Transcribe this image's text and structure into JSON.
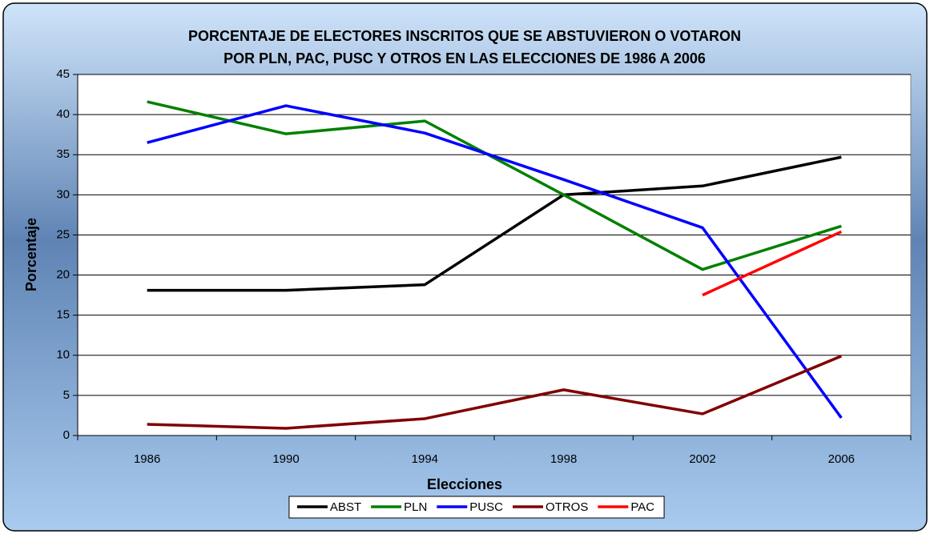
{
  "chart_data": {
    "type": "line",
    "title": [
      "PORCENTAJE DE ELECTORES INSCRITOS QUE SE ABSTUVIERON O VOTARON",
      "POR PLN, PAC, PUSC Y OTROS EN LAS ELECCIONES DE 1986 A 2006"
    ],
    "x_label": "Elecciones",
    "y_label": "Porcentaje",
    "categories": [
      "1986",
      "1990",
      "1994",
      "1998",
      "2002",
      "2006"
    ],
    "series": [
      {
        "name": "ABST",
        "color": "#000000",
        "values": [
          18.1,
          18.1,
          18.8,
          30.0,
          31.1,
          34.7
        ]
      },
      {
        "name": "PLN",
        "color": "#008000",
        "values": [
          41.6,
          37.6,
          39.2,
          30.0,
          20.7,
          26.1
        ]
      },
      {
        "name": "PUSC",
        "color": "#0000ff",
        "values": [
          36.5,
          41.1,
          37.7,
          31.9,
          25.9,
          2.2
        ]
      },
      {
        "name": "OTROS",
        "color": "#800000",
        "values": [
          1.4,
          0.9,
          2.1,
          5.7,
          2.7,
          9.9
        ]
      },
      {
        "name": "PAC",
        "color": "#ff0000",
        "values": [
          null,
          null,
          null,
          null,
          17.5,
          25.4
        ]
      }
    ],
    "ylim": [
      0,
      45
    ],
    "yticks": [
      0,
      5,
      10,
      15,
      20,
      25,
      30,
      35,
      40,
      45
    ],
    "grid": true,
    "legend": "bottom"
  }
}
